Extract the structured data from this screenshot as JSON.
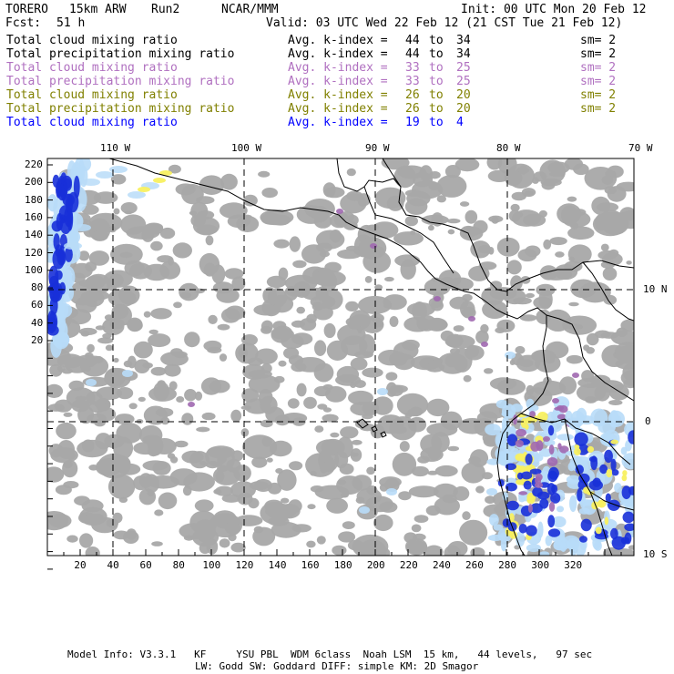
{
  "header": {
    "model": "TORERO",
    "resolution": "15km ARW",
    "run": "Run2",
    "org": "NCAR/MMM",
    "init": "Init: 00 UTC Mon 20 Feb 12",
    "fcst_label": "Fcst:",
    "fcst_value": "51 h",
    "valid": "Valid: 03 UTC Wed 22 Feb 12 (21 CST Tue 21 Feb 12)"
  },
  "legend": [
    {
      "field": "Total cloud mixing ratio",
      "kindex": "Avg. k-index =",
      "k1": "44",
      "to": "to",
      "k2": "34",
      "sm": "sm= 2",
      "color": "#000000"
    },
    {
      "field": "Total precipitation mixing ratio",
      "kindex": "Avg. k-index =",
      "k1": "44",
      "to": "to",
      "k2": "34",
      "sm": "sm= 2",
      "color": "#000000"
    },
    {
      "field": "Total cloud mixing ratio",
      "kindex": "Avg. k-index =",
      "k1": "33",
      "to": "to",
      "k2": "25",
      "sm": "sm= 2",
      "color": "#b070c0"
    },
    {
      "field": "Total precipitation mixing ratio",
      "kindex": "Avg. k-index =",
      "k1": "33",
      "to": "to",
      "k2": "25",
      "sm": "sm= 2",
      "color": "#b070c0"
    },
    {
      "field": "Total cloud mixing ratio",
      "kindex": "Avg. k-index =",
      "k1": "26",
      "to": "to",
      "k2": "20",
      "sm": "sm= 2",
      "color": "#808000"
    },
    {
      "field": "Total precipitation mixing ratio",
      "kindex": "Avg. k-index =",
      "k1": "26",
      "to": "to",
      "k2": "20",
      "sm": "sm= 2",
      "color": "#808000"
    },
    {
      "field": "Total cloud mixing ratio",
      "kindex": "Avg. k-index =",
      "k1": "19",
      "to": "to",
      "k2": "4",
      "sm": "",
      "color": "#0000ff"
    }
  ],
  "lon_labels": [
    "110 W",
    "100 W",
    "90 W",
    "80 W",
    "70 W"
  ],
  "lat_labels": [
    "10 N",
    "0",
    "10 S"
  ],
  "x_ticks": [
    "20",
    "40",
    "60",
    "80",
    "100",
    "120",
    "140",
    "160",
    "180",
    "200",
    "220",
    "240",
    "260",
    "280",
    "300",
    "320"
  ],
  "y_ticks": [
    "220",
    "200",
    "180",
    "160",
    "140",
    "120",
    "100",
    "80",
    "60",
    "40",
    "20"
  ],
  "footer": {
    "line1": "Model Info: V3.3.1   KF     YSU PBL  WDM 6class  Noah LSM  15 km,   44 levels,   97 sec",
    "line2": "LW: Godd SW: Goddard DIFF: simple KM: 2D Smagor"
  },
  "colors": {
    "cloud_gray": "#a8a8a8",
    "precip_blue": "#1830d8",
    "light_blue": "#b8dcf8",
    "yellow": "#f8f060",
    "purple": "#a068b0"
  }
}
